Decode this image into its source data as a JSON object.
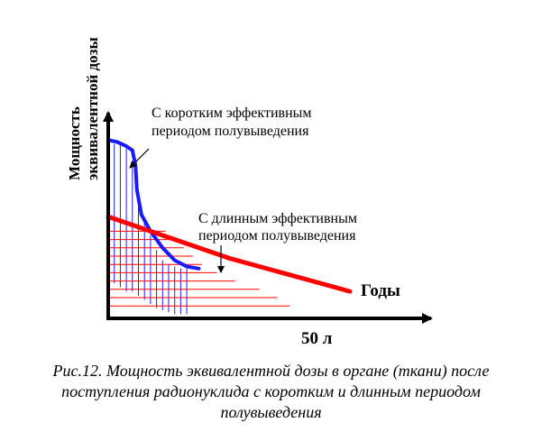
{
  "chart_data": {
    "type": "line",
    "title": "",
    "xlabel": "Годы",
    "ylabel_lines": [
      "Мощность",
      "эквивалентной дозы"
    ],
    "xtick_label": "50 л",
    "grid": false,
    "legend": "none",
    "series": [
      {
        "name": "С коротким эффективным периодом полувыведения",
        "annotation_lines": [
          "С   коротким   эффективным",
          "периодом полувыведения"
        ],
        "color": "#1a1aff",
        "points": [
          [
            0,
            0.86
          ],
          [
            0.03,
            0.85
          ],
          [
            0.06,
            0.83
          ],
          [
            0.08,
            0.81
          ],
          [
            0.09,
            0.74
          ],
          [
            0.095,
            0.62
          ],
          [
            0.11,
            0.5
          ],
          [
            0.14,
            0.42
          ],
          [
            0.18,
            0.34
          ],
          [
            0.22,
            0.28
          ],
          [
            0.26,
            0.25
          ],
          [
            0.3,
            0.24
          ]
        ]
      },
      {
        "name": "С длинным эффективным периодом полувыведения",
        "annotation_lines": [
          "С  длинным  эффективным",
          "периодом полувыведения"
        ],
        "color": "#ff0000",
        "points": [
          [
            0,
            0.49
          ],
          [
            0.1,
            0.44
          ],
          [
            0.2,
            0.39
          ],
          [
            0.3,
            0.34
          ],
          [
            0.4,
            0.29
          ],
          [
            0.5,
            0.25
          ],
          [
            0.6,
            0.21
          ],
          [
            0.7,
            0.17
          ],
          [
            0.8,
            0.13
          ]
        ]
      }
    ],
    "hatching": {
      "vertical_x": [
        0.02,
        0.04,
        0.06,
        0.08,
        0.1,
        0.12,
        0.14,
        0.16,
        0.18,
        0.2,
        0.22,
        0.24,
        0.26
      ],
      "vertical_tops": [
        0.84,
        0.84,
        0.82,
        0.76,
        0.55,
        0.48,
        0.4,
        0.33,
        0.28,
        0.26,
        0.25,
        0.24,
        0.24
      ],
      "vertical_bottoms": [
        0.17,
        0.15,
        0.13,
        0.13,
        0.11,
        0.09,
        0.07,
        0.05,
        0.04,
        0.03,
        0.02,
        0.02,
        0.02
      ],
      "horizontal_y": [
        0.42,
        0.38,
        0.34,
        0.3,
        0.26,
        0.22,
        0.18,
        0.14,
        0.1,
        0.06
      ],
      "horizontal_right": [
        0.19,
        0.22,
        0.25,
        0.28,
        0.31,
        0.36,
        0.42,
        0.5,
        0.56,
        0.6
      ],
      "blue_color": "#1a1aff",
      "red_color": "#ff0000"
    }
  },
  "caption": "Рис.12. Мощность эквивалентной дозы в органе (ткани) после поступления радионуклида с коротким и длинным периодом полувыведения"
}
